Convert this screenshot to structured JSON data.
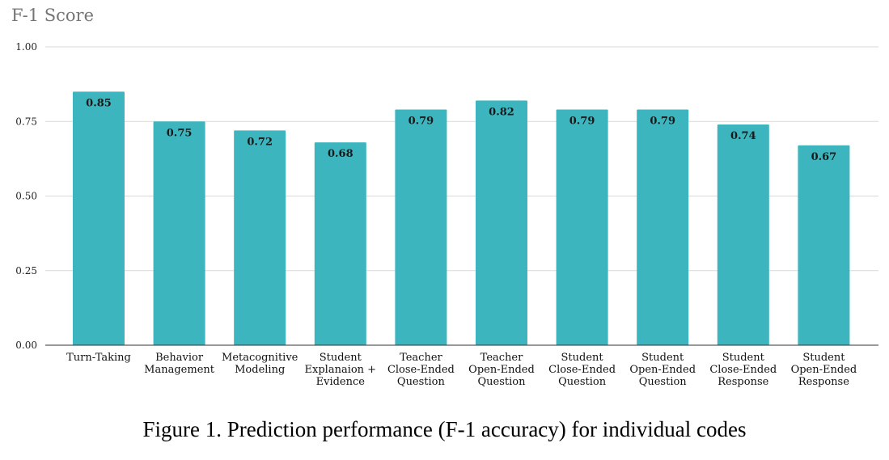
{
  "chart_data": {
    "type": "bar",
    "title": "F-1 Score",
    "xlabel": "",
    "ylabel": "",
    "ylim": [
      0,
      1.0
    ],
    "yticks": [
      "0.00",
      "0.25",
      "0.50",
      "0.75",
      "1.00"
    ],
    "ytick_values": [
      0,
      0.25,
      0.5,
      0.75,
      1.0
    ],
    "grid": true,
    "categories": [
      [
        "Turn-Taking"
      ],
      [
        "Behavior",
        "Management"
      ],
      [
        "Metacognitive",
        "Modeling"
      ],
      [
        "Student",
        "Explanaion +",
        "Evidence"
      ],
      [
        "Teacher",
        "Close-Ended",
        "Question"
      ],
      [
        "Teacher",
        "Open-Ended",
        "Question"
      ],
      [
        "Student",
        "Close-Ended",
        "Question"
      ],
      [
        "Student",
        "Open-Ended",
        "Question"
      ],
      [
        "Student",
        "Close-Ended",
        "Response"
      ],
      [
        "Student",
        "Open-Ended",
        "Response"
      ]
    ],
    "values": [
      0.85,
      0.75,
      0.72,
      0.68,
      0.79,
      0.82,
      0.79,
      0.79,
      0.74,
      0.67
    ],
    "data_labels": [
      "0.85",
      "0.75",
      "0.72",
      "0.68",
      "0.79",
      "0.82",
      "0.79",
      "0.79",
      "0.74",
      "0.67"
    ],
    "bar_color": "#3db5bf",
    "grid_color": "#d9d9d9",
    "baseline_color": "#333333"
  },
  "caption": "Figure 1. Prediction performance (F-1 accuracy) for individual codes"
}
